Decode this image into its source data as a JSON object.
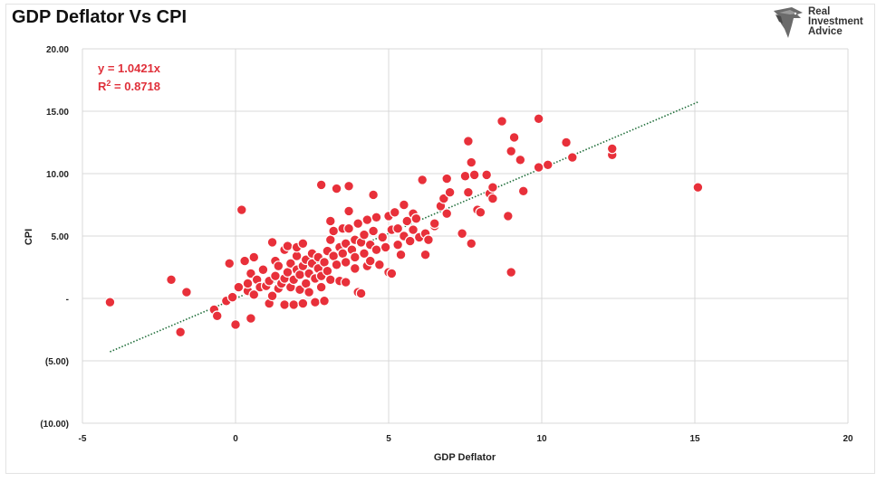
{
  "chart_data": {
    "type": "scatter",
    "title": "GDP Deflator Vs CPI",
    "xlabel": "GDP Deflator",
    "ylabel": "CPI",
    "xlim": [
      -5,
      20
    ],
    "ylim": [
      -10,
      20
    ],
    "x_ticks": [
      "-5",
      "0",
      "5",
      "10",
      "15",
      "20"
    ],
    "y_ticks": [
      "(10.00)",
      "(5.00)",
      "-",
      "5.00",
      "10.00",
      "15.00",
      "20.00"
    ],
    "grid": true,
    "point_color": "#e8303a",
    "trendline": {
      "equation": "y = 1.0421x",
      "r2_prefix": "R",
      "r2_sup": "2",
      "r2_value": " = 0.8718",
      "slope": 1.0421,
      "x_range": [
        -4.1,
        15.1
      ],
      "color": "#1f6e3a"
    },
    "annotation_color": "#e0303a",
    "points": [
      [
        -4.1,
        -0.3
      ],
      [
        -2.1,
        1.5
      ],
      [
        -1.8,
        -2.7
      ],
      [
        -1.6,
        0.5
      ],
      [
        -0.7,
        -0.9
      ],
      [
        -0.6,
        -1.4
      ],
      [
        -0.3,
        -0.2
      ],
      [
        -0.2,
        2.8
      ],
      [
        -0.1,
        0.1
      ],
      [
        0.0,
        -2.1
      ],
      [
        0.1,
        0.9
      ],
      [
        0.2,
        7.1
      ],
      [
        0.3,
        3.0
      ],
      [
        0.4,
        0.6
      ],
      [
        0.4,
        1.2
      ],
      [
        0.5,
        -1.6
      ],
      [
        0.5,
        2.0
      ],
      [
        0.6,
        3.3
      ],
      [
        0.6,
        0.3
      ],
      [
        0.7,
        1.5
      ],
      [
        0.8,
        0.9
      ],
      [
        0.9,
        2.3
      ],
      [
        1.0,
        1.0
      ],
      [
        1.1,
        1.4
      ],
      [
        1.1,
        -0.4
      ],
      [
        1.2,
        0.2
      ],
      [
        1.2,
        4.5
      ],
      [
        1.3,
        1.8
      ],
      [
        1.3,
        3.0
      ],
      [
        1.4,
        2.6
      ],
      [
        1.4,
        0.8
      ],
      [
        1.5,
        1.2
      ],
      [
        1.6,
        3.9
      ],
      [
        1.6,
        1.6
      ],
      [
        1.6,
        -0.5
      ],
      [
        1.7,
        2.1
      ],
      [
        1.7,
        4.2
      ],
      [
        1.8,
        0.9
      ],
      [
        1.8,
        2.8
      ],
      [
        1.9,
        -0.5
      ],
      [
        1.9,
        1.5
      ],
      [
        2.0,
        2.3
      ],
      [
        2.0,
        3.4
      ],
      [
        2.0,
        4.1
      ],
      [
        2.1,
        0.7
      ],
      [
        2.1,
        1.9
      ],
      [
        2.2,
        -0.4
      ],
      [
        2.2,
        2.6
      ],
      [
        2.2,
        4.4
      ],
      [
        2.3,
        1.2
      ],
      [
        2.3,
        3.1
      ],
      [
        2.4,
        2.0
      ],
      [
        2.4,
        0.5
      ],
      [
        2.5,
        2.8
      ],
      [
        2.5,
        3.6
      ],
      [
        2.6,
        1.6
      ],
      [
        2.6,
        -0.3
      ],
      [
        2.7,
        2.4
      ],
      [
        2.7,
        3.3
      ],
      [
        2.8,
        0.9
      ],
      [
        2.8,
        1.8
      ],
      [
        2.8,
        9.1
      ],
      [
        2.9,
        2.9
      ],
      [
        2.9,
        -0.2
      ],
      [
        3.0,
        3.8
      ],
      [
        3.0,
        2.2
      ],
      [
        3.1,
        4.7
      ],
      [
        3.1,
        6.2
      ],
      [
        3.1,
        1.5
      ],
      [
        3.2,
        3.4
      ],
      [
        3.2,
        5.4
      ],
      [
        3.3,
        2.7
      ],
      [
        3.3,
        8.8
      ],
      [
        3.4,
        4.1
      ],
      [
        3.4,
        1.4
      ],
      [
        3.5,
        3.6
      ],
      [
        3.5,
        5.6
      ],
      [
        3.6,
        2.9
      ],
      [
        3.6,
        4.4
      ],
      [
        3.6,
        1.3
      ],
      [
        3.7,
        5.6
      ],
      [
        3.7,
        9.0
      ],
      [
        3.7,
        7.0
      ],
      [
        3.8,
        3.9
      ],
      [
        3.9,
        2.4
      ],
      [
        3.9,
        4.7
      ],
      [
        3.9,
        3.3
      ],
      [
        4.0,
        0.5
      ],
      [
        4.0,
        6.0
      ],
      [
        4.1,
        4.5
      ],
      [
        4.1,
        0.4
      ],
      [
        4.2,
        3.6
      ],
      [
        4.2,
        5.1
      ],
      [
        4.3,
        2.6
      ],
      [
        4.3,
        6.3
      ],
      [
        4.4,
        4.3
      ],
      [
        4.4,
        3.0
      ],
      [
        4.5,
        8.3
      ],
      [
        4.5,
        5.4
      ],
      [
        4.6,
        3.9
      ],
      [
        4.6,
        6.5
      ],
      [
        4.7,
        2.7
      ],
      [
        4.8,
        4.9
      ],
      [
        4.9,
        4.1
      ],
      [
        5.0,
        6.6
      ],
      [
        5.0,
        2.1
      ],
      [
        5.1,
        5.5
      ],
      [
        5.1,
        2.0
      ],
      [
        5.2,
        6.9
      ],
      [
        5.3,
        5.6
      ],
      [
        5.3,
        4.3
      ],
      [
        5.4,
        3.5
      ],
      [
        5.5,
        7.5
      ],
      [
        5.5,
        5.0
      ],
      [
        5.6,
        6.2
      ],
      [
        5.7,
        4.6
      ],
      [
        5.8,
        6.8
      ],
      [
        5.8,
        5.5
      ],
      [
        5.9,
        6.4
      ],
      [
        6.0,
        4.9
      ],
      [
        6.1,
        9.5
      ],
      [
        6.2,
        5.2
      ],
      [
        6.2,
        3.5
      ],
      [
        6.3,
        4.7
      ],
      [
        6.5,
        5.8
      ],
      [
        6.5,
        6.0
      ],
      [
        6.7,
        7.4
      ],
      [
        6.8,
        8.0
      ],
      [
        6.9,
        6.8
      ],
      [
        6.9,
        9.6
      ],
      [
        7.0,
        8.5
      ],
      [
        7.4,
        5.2
      ],
      [
        7.5,
        9.8
      ],
      [
        7.6,
        8.5
      ],
      [
        7.6,
        12.6
      ],
      [
        7.7,
        10.9
      ],
      [
        7.7,
        4.4
      ],
      [
        7.8,
        9.9
      ],
      [
        7.9,
        7.1
      ],
      [
        8.0,
        6.9
      ],
      [
        8.2,
        9.9
      ],
      [
        8.3,
        8.4
      ],
      [
        8.4,
        8.0
      ],
      [
        8.4,
        8.9
      ],
      [
        8.7,
        14.2
      ],
      [
        8.9,
        6.6
      ],
      [
        9.0,
        11.8
      ],
      [
        9.0,
        2.1
      ],
      [
        9.1,
        12.9
      ],
      [
        9.3,
        11.1
      ],
      [
        9.4,
        8.6
      ],
      [
        9.9,
        10.5
      ],
      [
        9.9,
        14.4
      ],
      [
        10.2,
        10.7
      ],
      [
        10.8,
        12.5
      ],
      [
        11.0,
        11.3
      ],
      [
        12.3,
        11.5
      ],
      [
        12.3,
        12.0
      ],
      [
        15.1,
        8.9
      ]
    ]
  },
  "logo": {
    "line1": "Real",
    "line2": "Investment",
    "line3": "Advice"
  }
}
